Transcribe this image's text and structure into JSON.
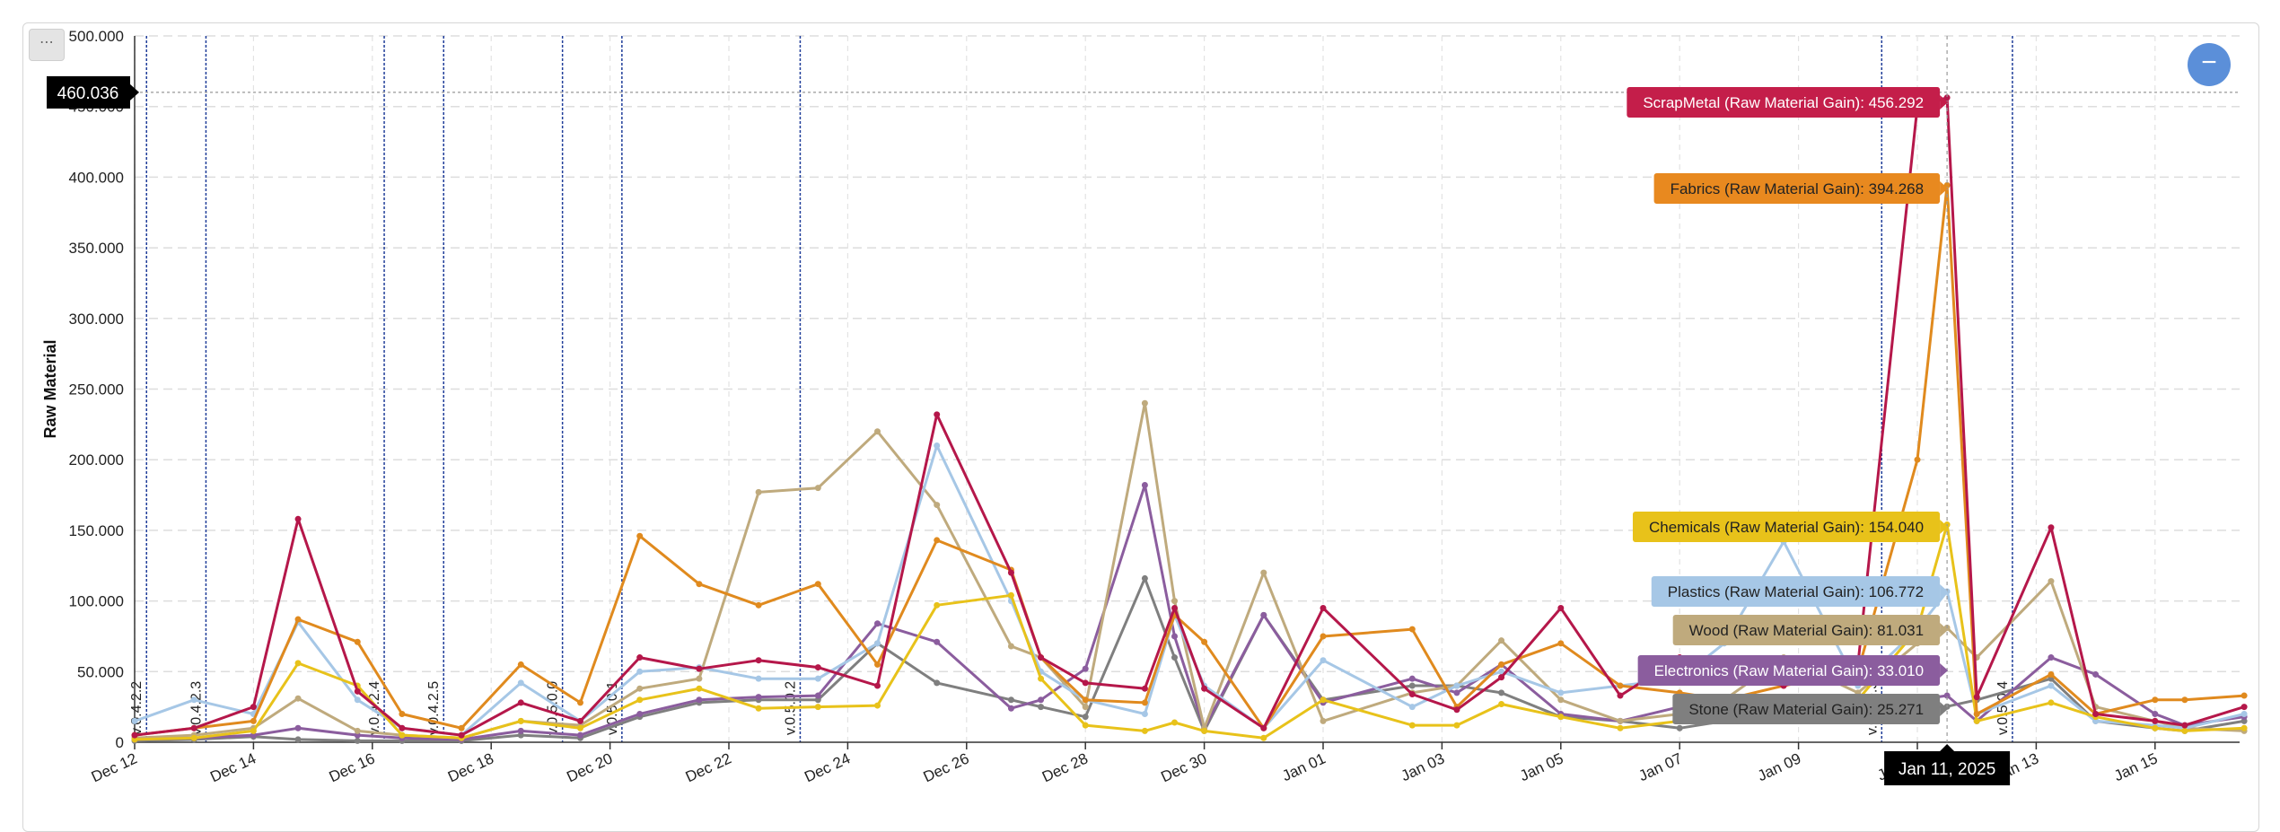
{
  "ui": {
    "menu_label": "⋯",
    "zoom_label": "−",
    "cursor_y_value": "460.036",
    "cursor_x_label": "Jan 11, 2025"
  },
  "chart_data": {
    "type": "line",
    "title": "",
    "xlabel": "",
    "ylabel": "Raw Material",
    "ylim": [
      0,
      500000
    ],
    "y_tick_values": [
      0,
      50000,
      100000,
      150000,
      200000,
      250000,
      300000,
      350000,
      400000,
      450000,
      500000
    ],
    "y_tick_labels": [
      "0",
      "50.000",
      "100.000",
      "150.000",
      "200.000",
      "250.000",
      "300.000",
      "350.000",
      "400.000",
      "450.000",
      "500.000"
    ],
    "x_start": "2024-12-12",
    "x_tick_labels": [
      "Dec 12",
      "Dec 14",
      "Dec 16",
      "Dec 18",
      "Dec 20",
      "Dec 22",
      "Dec 24",
      "Dec 26",
      "Dec 28",
      "Dec 30",
      "Jan 01",
      "Jan 03",
      "Jan 05",
      "Jan 07",
      "Jan 09",
      "Jan 11",
      "Jan 13",
      "Jan 15"
    ],
    "grid": true,
    "versions": [
      {
        "label": "v.0.4.2.2",
        "day": 0.2
      },
      {
        "label": "v.0.4.2.3",
        "day": 1.2
      },
      {
        "label": "v.0.4.2.4",
        "day": 4.2
      },
      {
        "label": "v.0.4.2.5",
        "day": 5.2
      },
      {
        "label": "v.0.5.0.0",
        "day": 7.2
      },
      {
        "label": "v.0.5.0.1",
        "day": 8.2
      },
      {
        "label": "v.0.5.0.2",
        "day": 11.2
      },
      {
        "label": "v.0.5.0.3",
        "day": 29.4
      },
      {
        "label": "v.0.5.0.4",
        "day": 31.6
      }
    ],
    "cursor": {
      "day": 30.5,
      "value": 460036,
      "label": "Jan 11, 2025"
    },
    "series": [
      {
        "name": "ScrapMetal",
        "color": "#b5174a",
        "x": [
          0,
          1,
          2,
          2.75,
          3.75,
          4.5,
          5.5,
          6.5,
          7.5,
          8.5,
          9.5,
          10.5,
          11.5,
          12.5,
          13.5,
          14.75,
          15.25,
          16,
          17,
          17.5,
          18,
          19,
          20,
          21.5,
          22.25,
          23,
          24,
          25,
          26,
          26.75,
          27.75,
          29,
          30,
          30.5,
          31,
          32.25,
          33,
          34,
          34.5,
          35.5
        ],
        "values": [
          5000,
          10000,
          25000,
          158000,
          36000,
          10000,
          5000,
          28000,
          15000,
          60000,
          52000,
          58000,
          53000,
          40000,
          232000,
          120000,
          60000,
          42000,
          38000,
          95000,
          38000,
          10000,
          95000,
          34000,
          23000,
          46000,
          95000,
          33000,
          60000,
          50000,
          40000,
          55000,
          450000,
          456292,
          32000,
          152000,
          20000,
          15000,
          12000,
          25000
        ]
      },
      {
        "name": "Fabrics",
        "color": "#e08a1e",
        "x": [
          0,
          1,
          2,
          2.75,
          3.75,
          4.5,
          5.5,
          6.5,
          7.5,
          8.5,
          9.5,
          10.5,
          11.5,
          12.5,
          13.5,
          14.75,
          15.25,
          16,
          17,
          17.5,
          18,
          19,
          20,
          21.5,
          22.25,
          23,
          24,
          25,
          26,
          26.75,
          27.75,
          29,
          30,
          30.5,
          31,
          32.25,
          33,
          34,
          34.5,
          35.5
        ],
        "values": [
          5000,
          10000,
          15000,
          87000,
          71000,
          20000,
          10000,
          55000,
          28000,
          146000,
          112000,
          97000,
          112000,
          55000,
          143000,
          122000,
          60000,
          30000,
          28000,
          90000,
          71000,
          10000,
          75000,
          80000,
          25000,
          55000,
          70000,
          40000,
          35000,
          30000,
          40000,
          50000,
          200000,
          394268,
          20000,
          48000,
          20000,
          30000,
          30000,
          33000
        ]
      },
      {
        "name": "Chemicals",
        "color": "#e8c21a",
        "x": [
          0,
          1,
          2,
          2.75,
          3.75,
          4.5,
          5.5,
          6.5,
          7.5,
          8.5,
          9.5,
          10.5,
          11.5,
          12.5,
          13.5,
          14.75,
          15.25,
          16,
          17,
          17.5,
          18,
          19,
          20,
          21.5,
          22.25,
          23,
          24,
          25,
          26,
          26.75,
          27.75,
          29,
          30,
          30.5,
          31,
          32.25,
          33,
          34,
          34.5,
          35.5
        ],
        "values": [
          2000,
          3000,
          8000,
          56000,
          40000,
          5000,
          3000,
          15000,
          10000,
          30000,
          38000,
          24000,
          25000,
          26000,
          97000,
          104000,
          45000,
          12000,
          8000,
          14000,
          8000,
          3000,
          30000,
          12000,
          12000,
          27000,
          18000,
          10000,
          15000,
          20000,
          25000,
          30000,
          80000,
          154040,
          15000,
          28000,
          18000,
          10000,
          8000,
          10000
        ]
      },
      {
        "name": "Plastics",
        "color": "#a6c7e6",
        "x": [
          0,
          1,
          2,
          2.75,
          3.75,
          4.5,
          5.5,
          6.5,
          7.5,
          8.5,
          9.5,
          10.5,
          11.5,
          12.5,
          13.5,
          14.75,
          15.25,
          16,
          17,
          17.5,
          18,
          19,
          20,
          21.5,
          22.25,
          23,
          24,
          25,
          26,
          26.75,
          27.75,
          29,
          30,
          30.5,
          31,
          32.25,
          33,
          34,
          34.5,
          35.5
        ],
        "values": [
          15000,
          30000,
          20000,
          85000,
          30000,
          10000,
          5000,
          42000,
          15000,
          50000,
          53000,
          45000,
          45000,
          70000,
          210000,
          100000,
          50000,
          30000,
          20000,
          90000,
          40000,
          10000,
          58000,
          25000,
          40000,
          50000,
          35000,
          40000,
          45000,
          70000,
          142000,
          40000,
          80000,
          106772,
          20000,
          40000,
          15000,
          12000,
          10000,
          20000
        ]
      },
      {
        "name": "Wood",
        "color": "#bfaa7d",
        "x": [
          0,
          1,
          2,
          2.75,
          3.75,
          4.5,
          5.5,
          6.5,
          7.5,
          8.5,
          9.5,
          10.5,
          11.5,
          12.5,
          13.5,
          14.75,
          15.25,
          16,
          17,
          17.5,
          18,
          19,
          20,
          21.5,
          22.25,
          23,
          24,
          25,
          26,
          26.75,
          27.75,
          29,
          30,
          30.5,
          31,
          32.25,
          33,
          34,
          34.5,
          35.5
        ],
        "values": [
          3000,
          5000,
          10000,
          31000,
          8000,
          5000,
          3000,
          15000,
          12000,
          38000,
          45000,
          177000,
          180000,
          220000,
          168000,
          68000,
          60000,
          25000,
          240000,
          100000,
          10000,
          120000,
          15000,
          35000,
          40000,
          72000,
          30000,
          15000,
          20000,
          30000,
          60000,
          35000,
          70000,
          81031,
          60000,
          114000,
          25000,
          15000,
          10000,
          8000
        ]
      },
      {
        "name": "Electronics",
        "color": "#8b5d9e",
        "x": [
          0,
          1,
          2,
          2.75,
          3.75,
          4.5,
          5.5,
          6.5,
          7.5,
          8.5,
          9.5,
          10.5,
          11.5,
          12.5,
          13.5,
          14.75,
          15.25,
          16,
          17,
          17.5,
          18,
          19,
          20,
          21.5,
          22.25,
          23,
          24,
          25,
          26,
          26.75,
          27.75,
          29,
          30,
          30.5,
          31,
          32.25,
          33,
          34,
          34.5,
          35.5
        ],
        "values": [
          2000,
          3000,
          5000,
          10000,
          5000,
          3000,
          2000,
          8000,
          5000,
          20000,
          30000,
          32000,
          33000,
          84000,
          71000,
          24000,
          30000,
          52000,
          182000,
          75000,
          10000,
          90000,
          28000,
          45000,
          35000,
          55000,
          20000,
          15000,
          25000,
          20000,
          28000,
          30000,
          30000,
          33010,
          15000,
          60000,
          48000,
          20000,
          12000,
          18000
        ]
      },
      {
        "name": "Stone",
        "color": "#7f7f7f",
        "x": [
          0,
          1,
          2,
          2.75,
          3.75,
          4.5,
          5.5,
          6.5,
          7.5,
          8.5,
          9.5,
          10.5,
          11.5,
          12.5,
          13.5,
          14.75,
          15.25,
          16,
          17,
          17.5,
          18,
          19,
          20,
          21.5,
          22.25,
          23,
          24,
          25,
          26,
          26.75,
          27.75,
          29,
          30,
          30.5,
          31,
          32.25,
          33,
          34,
          34.5,
          35.5
        ],
        "values": [
          1000,
          2000,
          4000,
          2000,
          1000,
          1000,
          1000,
          5000,
          3000,
          18000,
          28000,
          30000,
          30000,
          70000,
          42000,
          30000,
          25000,
          18000,
          116000,
          60000,
          8000,
          90000,
          30000,
          40000,
          40000,
          35000,
          18000,
          15000,
          10000,
          15000,
          20000,
          22000,
          25000,
          25271,
          30000,
          45000,
          15000,
          10000,
          8000,
          15000
        ]
      }
    ],
    "tooltips": [
      {
        "series": "ScrapMetal",
        "text": "ScrapMetal (Raw Material Gain): 456.292",
        "bg": "#c41e4a",
        "fg": "#ffffff",
        "y": 114
      },
      {
        "series": "Fabrics",
        "text": "Fabrics (Raw Material Gain): 394.268",
        "bg": "#e8891f",
        "fg": "#222222",
        "y": 210
      },
      {
        "series": "Chemicals",
        "text": "Chemicals (Raw Material Gain): 154.040",
        "bg": "#e8c21a",
        "fg": "#222222",
        "y": 587
      },
      {
        "series": "Plastics",
        "text": "Plastics (Raw Material Gain): 106.772",
        "bg": "#a6c7e6",
        "fg": "#222222",
        "y": 659
      },
      {
        "series": "Wood",
        "text": "Wood (Raw Material Gain): 81.031",
        "bg": "#bfaa7d",
        "fg": "#222222",
        "y": 702
      },
      {
        "series": "Electronics",
        "text": "Electronics (Raw Material Gain): 33.010",
        "bg": "#8b5d9e",
        "fg": "#ffffff",
        "y": 747
      },
      {
        "series": "Stone",
        "text": "Stone (Raw Material Gain): 25.271",
        "bg": "#7f7f7f",
        "fg": "#222222",
        "y": 790
      }
    ]
  }
}
